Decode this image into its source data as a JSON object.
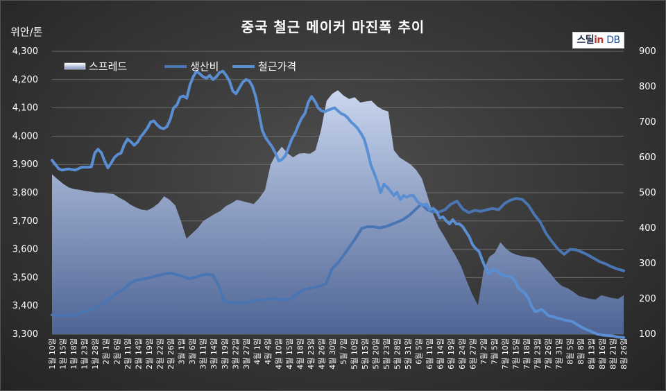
{
  "title": "중국 철근 메이커 마진폭 추이",
  "unit_label": "위안/톤",
  "brand": {
    "prefix": "스틸",
    "mid": "in",
    "suffix": "DB"
  },
  "colors": {
    "cost_line": "#4a75b3",
    "price_line": "#5a8ed3",
    "spread_top": "#c9d6ef",
    "spread_bottom": "#4e6494"
  },
  "chart_data": {
    "type": "line",
    "legend_position": "top-left",
    "grid": true,
    "y_left": {
      "ylim": [
        3300,
        4300
      ],
      "ticks": [
        "3,300",
        "3,400",
        "3,500",
        "3,600",
        "3,700",
        "3,800",
        "3,900",
        "4,000",
        "4,100",
        "4,200",
        "4,300"
      ]
    },
    "y_right": {
      "ylim": [
        100,
        900
      ],
      "ticks": [
        "100",
        "200",
        "300",
        "400",
        "500",
        "600",
        "700",
        "800",
        "900"
      ]
    },
    "x_ticks": [
      "1월 10일",
      "1월 15일",
      "1월 18일",
      "1월 23일",
      "1월 28일",
      "2월 1일",
      "2월 6일",
      "2월 11일",
      "2월 14일",
      "2월 19일",
      "2월 22일",
      "2월 26일",
      "3월 1일",
      "3월 6일",
      "3월 11일",
      "3월 14일",
      "3월 19일",
      "3월 22일",
      "3월 27일",
      "4월 1일",
      "4월 4일",
      "4월 10일",
      "4월 15일",
      "4월 18일",
      "4월 23일",
      "4월 26일",
      "4월 30일",
      "5월 7일",
      "5월 10일",
      "5월 15일",
      "5월 20일",
      "5월 23일",
      "5월 28일",
      "5월 31일",
      "6월 5일",
      "6월 11일",
      "6월 14일",
      "6월 19일",
      "6월 24일",
      "6월 27일",
      "7월 2일",
      "7월 5일",
      "7월 10일",
      "7월 15일",
      "7월 18일",
      "7월 23일",
      "7월 26일",
      "7월 31일",
      "8월 5일",
      "8월 8일",
      "8월 13일",
      "8월 16일",
      "8월 21일",
      "8월 26일"
    ],
    "series": [
      {
        "name": "스프레드",
        "axis": "right",
        "kind": "area",
        "values": [
          552,
          538,
          525,
          515,
          510,
          508,
          505,
          503,
          500,
          500,
          498,
          496,
          486,
          478,
          466,
          458,
          452,
          450,
          458,
          470,
          490,
          480,
          464,
          420,
          370,
          385,
          400,
          420,
          430,
          440,
          448,
          462,
          470,
          480,
          476,
          472,
          468,
          485,
          508,
          580,
          610,
          630,
          612,
          600,
          610,
          612,
          610,
          620,
          678,
          760,
          780,
          790,
          775,
          765,
          770,
          755,
          758,
          760,
          745,
          735,
          730,
          620,
          600,
          590,
          580,
          564,
          540,
          490,
          440,
          402,
          376,
          348,
          322,
          292,
          250,
          212,
          182,
          280,
          318,
          330,
          360,
          342,
          330,
          324,
          320,
          318,
          316,
          308,
          288,
          270,
          250,
          236,
          230,
          220,
          208,
          204,
          200,
          198,
          210,
          206,
          202,
          200,
          210
        ]
      },
      {
        "name": "생산비",
        "axis": "left",
        "kind": "line",
        "values": [
          3368,
          3367,
          3366,
          3366,
          3367,
          3378,
          3382,
          3390,
          3402,
          3416,
          3430,
          3446,
          3458,
          3478,
          3490,
          3494,
          3497,
          3503,
          3508,
          3514,
          3516,
          3510,
          3504,
          3496,
          3500,
          3508,
          3512,
          3509,
          3470,
          3414,
          3412,
          3410,
          3410,
          3413,
          3418,
          3420,
          3423,
          3425,
          3424,
          3420,
          3424,
          3440,
          3454,
          3460,
          3465,
          3470,
          3478,
          3530,
          3552,
          3580,
          3610,
          3640,
          3674,
          3680,
          3680,
          3676,
          3680,
          3688,
          3696,
          3706,
          3720,
          3740,
          3760,
          3740,
          3732,
          3732,
          3740,
          3760,
          3770,
          3742,
          3730,
          3738,
          3734,
          3740,
          3744,
          3740,
          3762,
          3774,
          3780,
          3776,
          3756,
          3722,
          3696,
          3655,
          3626,
          3600,
          3582,
          3600,
          3598,
          3590,
          3580,
          3568,
          3556,
          3548,
          3538,
          3530,
          3524
        ]
      },
      {
        "name": "철근가격",
        "axis": "left",
        "kind": "line",
        "values": [
          3915,
          3900,
          3885,
          3880,
          3882,
          3884,
          3882,
          3880,
          3885,
          3890,
          3890,
          3890,
          3892,
          3940,
          3954,
          3942,
          3912,
          3888,
          3905,
          3925,
          3935,
          3940,
          3970,
          3990,
          3980,
          3968,
          3978,
          3998,
          4012,
          4028,
          4050,
          4054,
          4040,
          4030,
          4026,
          4034,
          4060,
          4100,
          4110,
          4138,
          4142,
          4134,
          4182,
          4210,
          4230,
          4220,
          4210,
          4205,
          4215,
          4200,
          4210,
          4225,
          4230,
          4215,
          4195,
          4160,
          4150,
          4170,
          4190,
          4200,
          4196,
          4176,
          4140,
          4080,
          4020,
          3995,
          3978,
          3962,
          3940,
          3912,
          3918,
          3930,
          3960,
          3990,
          4010,
          4040,
          4064,
          4080,
          4120,
          4140,
          4123,
          4100,
          4090,
          4086,
          4092,
          4096,
          4100,
          4090,
          4080,
          4075,
          4065,
          4050,
          4040,
          4028,
          4010,
          3990,
          3950,
          3900,
          3870,
          3840,
          3800,
          3830,
          3820,
          3806,
          3790,
          3802,
          3776,
          3790,
          3784,
          3790,
          3790,
          3772,
          3760,
          3756,
          3760,
          3740,
          3745,
          3735,
          3710,
          3715,
          3700,
          3690,
          3705,
          3690,
          3690,
          3680,
          3662,
          3644,
          3616,
          3602,
          3592,
          3560,
          3532,
          3513,
          3528,
          3525,
          3520,
          3510,
          3506,
          3504,
          3500,
          3486,
          3462,
          3453,
          3444,
          3427,
          3398,
          3380,
          3382,
          3388,
          3378,
          3366,
          3363,
          3360,
          3356,
          3354,
          3350,
          3348,
          3346,
          3340,
          3333,
          3326,
          3320,
          3315,
          3310,
          3305,
          3300,
          3298,
          3296,
          3295,
          3294,
          3293,
          3290,
          3289,
          3288
        ]
      }
    ]
  }
}
